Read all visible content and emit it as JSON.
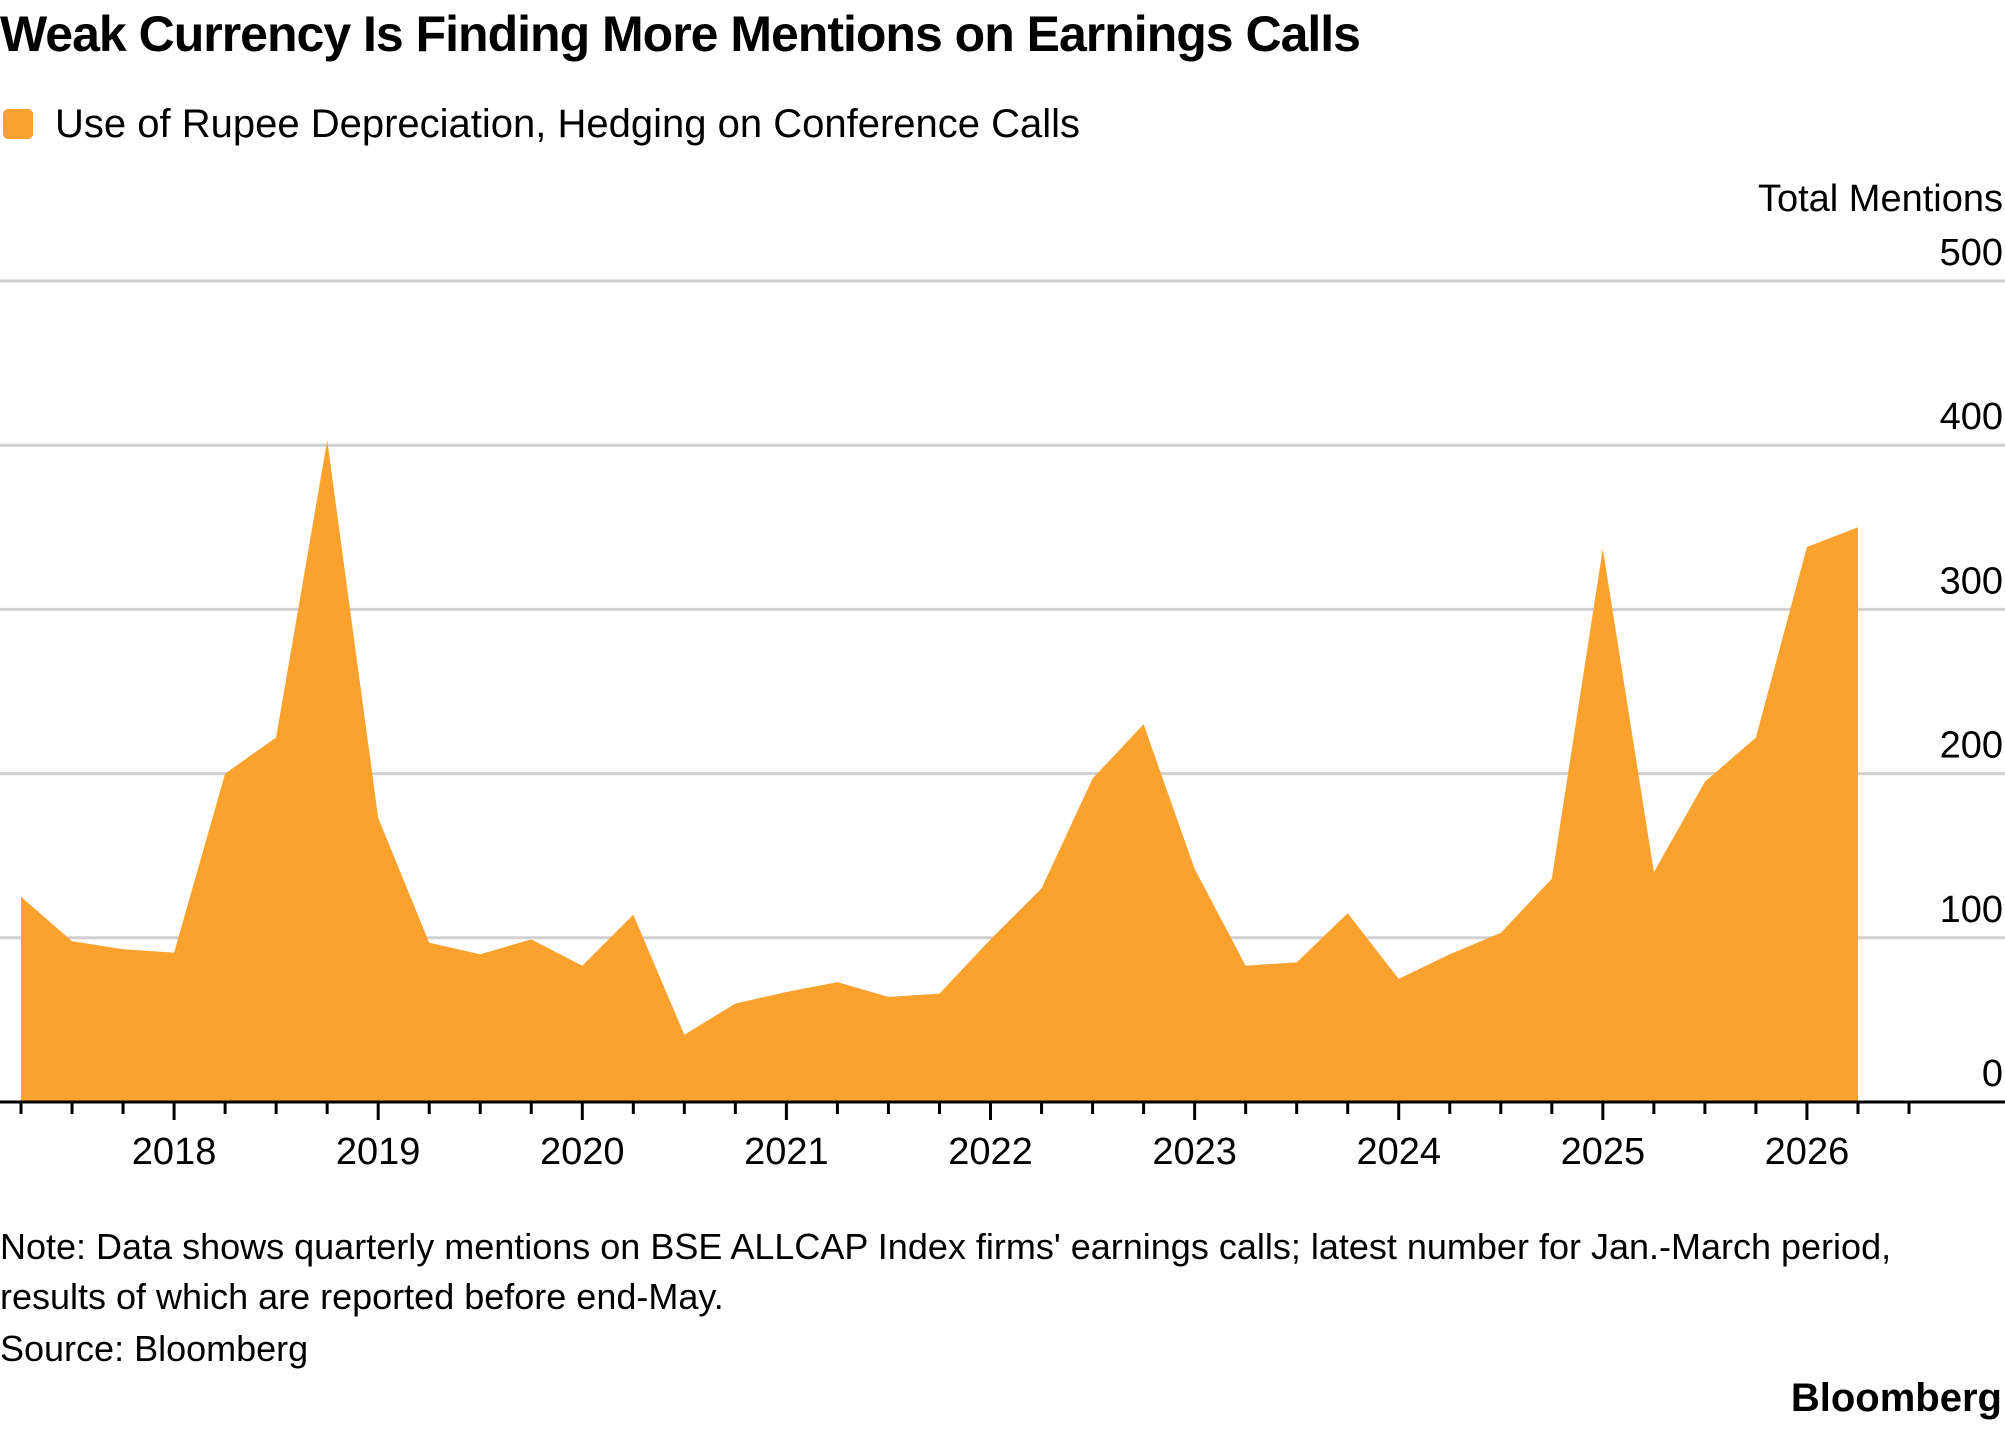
{
  "title": "Weak Currency Is Finding More Mentions on Earnings Calls",
  "legend": [
    {
      "label": "Use of Rupee Depreciation, Hedging on Conference Calls",
      "color": "#fba22e"
    }
  ],
  "note": "Note: Data shows quarterly mentions on BSE ALLCAP Index firms' earnings calls; latest number for Jan.-March period, results of which are reported before end-May.",
  "source": "Source: Bloomberg",
  "brand": "Bloomberg",
  "chart_data": {
    "type": "area",
    "title": "Weak Currency Is Finding More Mentions on Earnings Calls",
    "xlabel": "",
    "ylabel": "Total Mentions",
    "ylim": [
      0,
      500
    ],
    "yticks": [
      0,
      100,
      200,
      300,
      400,
      500
    ],
    "y_axis_position": "right",
    "grid": true,
    "legend_position": "top-left",
    "x_tick_labels": [
      "2018",
      "2019",
      "2020",
      "2021",
      "2022",
      "2023",
      "2024",
      "2025",
      "2026"
    ],
    "x_tick_values": [
      2018,
      2019,
      2020,
      2021,
      2022,
      2023,
      2024,
      2025,
      2026
    ],
    "xlim": [
      2017.25,
      2026.5
    ],
    "series": [
      {
        "name": "Use of Rupee Depreciation, Hedging on Conference Calls",
        "color": "#fba22e",
        "x": [
          2017.25,
          2017.5,
          2017.75,
          2018.0,
          2018.25,
          2018.5,
          2018.75,
          2019.0,
          2019.25,
          2019.5,
          2019.75,
          2020.0,
          2020.25,
          2020.5,
          2020.75,
          2021.0,
          2021.25,
          2021.5,
          2021.75,
          2022.0,
          2022.25,
          2022.5,
          2022.75,
          2023.0,
          2023.25,
          2023.5,
          2023.75,
          2024.0,
          2024.25,
          2024.5,
          2024.75,
          2025.0,
          2025.25,
          2025.5,
          2025.75,
          2026.0,
          2026.25
        ],
        "values": [
          125,
          98,
          93,
          91,
          200,
          222,
          403,
          173,
          97,
          90,
          99,
          83,
          114,
          41,
          60,
          67,
          73,
          64,
          66,
          99,
          130,
          197,
          230,
          142,
          83,
          85,
          115,
          75,
          90,
          103,
          136,
          337,
          140,
          195,
          222,
          338,
          350
        ]
      }
    ]
  }
}
